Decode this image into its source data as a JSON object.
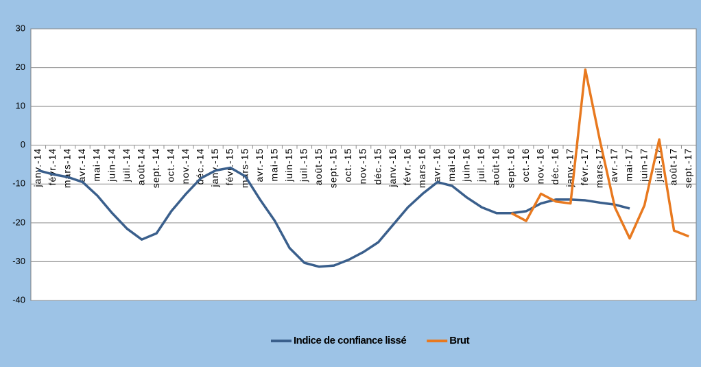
{
  "chart_data": {
    "type": "line",
    "categories": [
      "janv.-14",
      "févr.-14",
      "mars-14",
      "avr.-14",
      "mai-14",
      "juin-14",
      "juil.-14",
      "août-14",
      "sept.-14",
      "oct.-14",
      "nov.-14",
      "déc.-14",
      "janv.-15",
      "févr.-15",
      "mars-15",
      "avr.-15",
      "mai-15",
      "juin-15",
      "juil.-15",
      "août-15",
      "sept.-15",
      "oct.-15",
      "nov.-15",
      "déc.-15",
      "janv.-16",
      "févr.-16",
      "mars-16",
      "avr.-16",
      "mai-16",
      "juin-16",
      "juil.-16",
      "août-16",
      "sept.-16",
      "oct.-16",
      "nov.-16",
      "déc.-16",
      "janv.-17",
      "févr.-17",
      "mars-17",
      "avr.-17",
      "mai-17",
      "juin-17",
      "juil.-17",
      "août-17",
      "sept.-17"
    ],
    "series": [
      {
        "name": "Indice de confiance lissé",
        "color": "#3a5f8c",
        "values": [
          -6.5,
          -7.5,
          -8.2,
          -9.5,
          -13,
          -17.5,
          -21.5,
          -24.3,
          -22.7,
          -17,
          -12.5,
          -8.5,
          -6.5,
          -5.8,
          -8,
          -14,
          -19.5,
          -26.5,
          -30.3,
          -31.3,
          -31,
          -29.5,
          -27.5,
          -25,
          -20.5,
          -16,
          -12.5,
          -9.5,
          -10.5,
          -13.5,
          -16,
          -17.5,
          -17.5,
          -17,
          -15,
          -14,
          -14,
          -14.2,
          -14.8,
          -15.3,
          -16.3,
          null,
          null,
          null,
          null
        ]
      },
      {
        "name": "Brut",
        "color": "#e8791f",
        "values": [
          null,
          null,
          null,
          null,
          null,
          null,
          null,
          null,
          null,
          null,
          null,
          null,
          null,
          null,
          null,
          null,
          null,
          null,
          null,
          null,
          null,
          null,
          null,
          null,
          null,
          null,
          null,
          null,
          null,
          null,
          null,
          null,
          -17.5,
          -19.5,
          -12.5,
          -14.5,
          -15,
          19.5,
          1,
          -16,
          -24,
          -15.5,
          1.5,
          -22,
          -23.5
        ]
      }
    ],
    "ylim": [
      -40,
      30
    ],
    "yticks": [
      -40,
      -30,
      -20,
      -10,
      0,
      10,
      20,
      30
    ],
    "grid": true,
    "legend": "bottom"
  }
}
